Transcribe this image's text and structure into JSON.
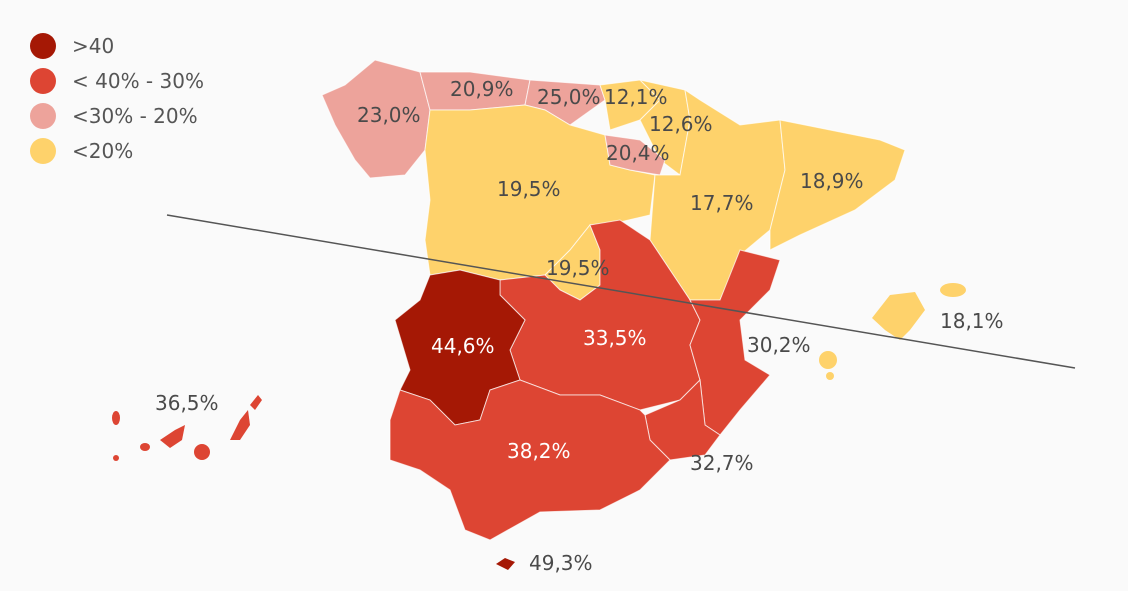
{
  "colors": {
    "gt40": "#a51805",
    "30to40": "#dd4533",
    "20to30": "#eda39b",
    "lt20": "#fed26b",
    "background": "#fafafa"
  },
  "legend": [
    {
      "label": ">40",
      "color": "#a51805"
    },
    {
      "label": "< 40% - 30%",
      "color": "#dd4533"
    },
    {
      "label": "<30% - 20%",
      "color": "#eda39b"
    },
    {
      "label": "<20%",
      "color": "#fed26b"
    }
  ],
  "regions": {
    "galicia": "23,0%",
    "asturias": "20,9%",
    "cantabria": "25,0%",
    "pais_vasco": "12,1%",
    "navarra": "12,6%",
    "la_rioja": "20,4%",
    "castilla_leon": "19,5%",
    "aragon": "17,7%",
    "cataluna": "18,9%",
    "madrid": "19,5%",
    "extremadura": "44,6%",
    "castilla_la_mancha": "33,5%",
    "valencia": "30,2%",
    "baleares": "18,1%",
    "canarias": "36,5%",
    "andalucia": "38,2%",
    "murcia": "32,7%",
    "ceuta_melilla": "49,3%"
  }
}
